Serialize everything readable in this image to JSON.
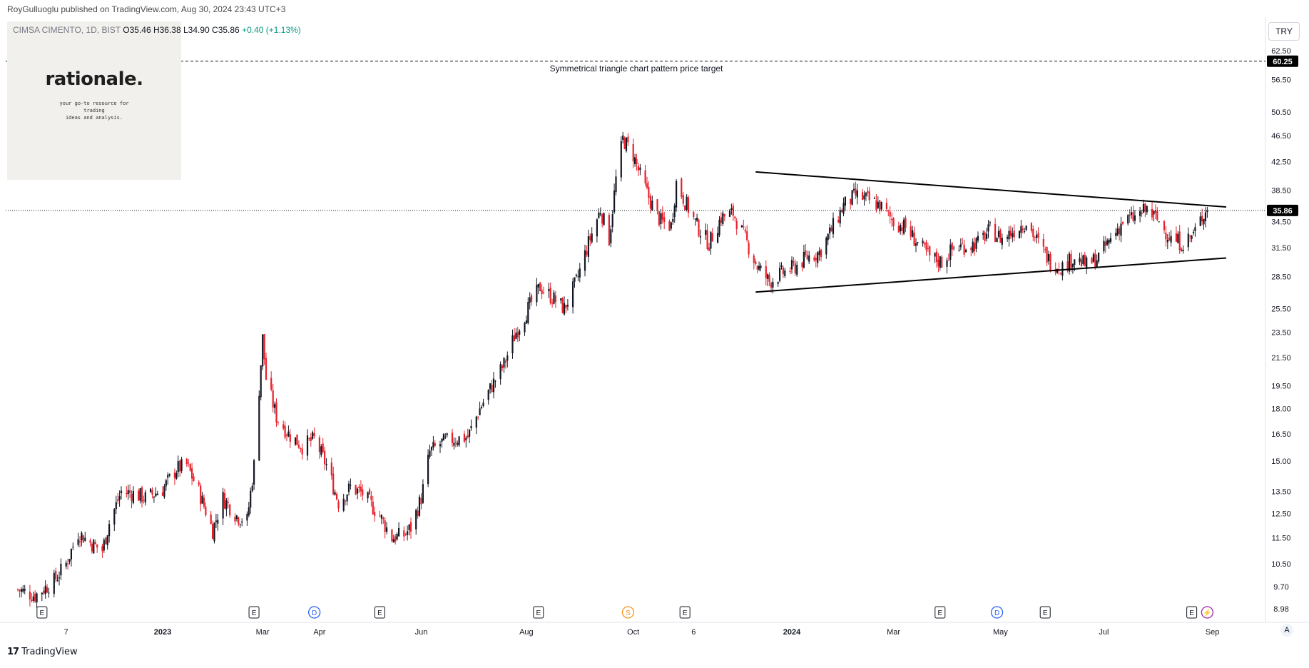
{
  "header": {
    "publisher": "RoyGulluoglu published on TradingView.com, Aug 30, 2024 23:43 UTC+3"
  },
  "symbol": {
    "name": "CIMSA CIMENTO, 1D, BIST",
    "ohlc": "O35.46 H36.38 L34.90 C35.86",
    "change": "+0.40 (+1.13%)"
  },
  "logo": {
    "title": "rationale.",
    "tagline_1": "your go-to resource for trading",
    "tagline_2": "ideas and analysis."
  },
  "toolbar": {
    "currency": "TRY",
    "auto_label": "A"
  },
  "footer": {
    "brand": "TradingView",
    "brand_mark": "17"
  },
  "colors": {
    "up": "#131722",
    "down": "#e8202b",
    "trendline": "#000000",
    "badge_bg": "#000000",
    "badge_text": "#ffffff",
    "event_blue": "#2962ff",
    "event_orange": "#f7931a",
    "event_purple": "#9c27b0"
  },
  "chart_data": {
    "type": "candlestick",
    "title": "",
    "y_scale": "log",
    "ylim": [
      8.7,
      66.0
    ],
    "y_ticks": [
      "62.50",
      "56.50",
      "50.50",
      "46.50",
      "42.50",
      "38.50",
      "34.50",
      "31.50",
      "28.50",
      "25.50",
      "23.50",
      "21.50",
      "19.50",
      "18.00",
      "16.50",
      "15.00",
      "13.50",
      "12.50",
      "11.50",
      "10.50",
      "9.70",
      "8.98"
    ],
    "x_ticks": [
      {
        "label": "7",
        "date": "2022-11-07"
      },
      {
        "label": "2023",
        "date": "2023-01-02"
      },
      {
        "label": "Mar",
        "date": "2023-03-01"
      },
      {
        "label": "Apr",
        "date": "2023-04-03"
      },
      {
        "label": "Jun",
        "date": "2023-06-01"
      },
      {
        "label": "Aug",
        "date": "2023-08-01"
      },
      {
        "label": "Oct",
        "date": "2023-10-02"
      },
      {
        "label": "6",
        "date": "2023-11-06"
      },
      {
        "label": "2024",
        "date": "2024-01-02"
      },
      {
        "label": "Mar",
        "date": "2024-03-01"
      },
      {
        "label": "May",
        "date": "2024-05-02"
      },
      {
        "label": "Jul",
        "date": "2024-07-01"
      },
      {
        "label": "Sep",
        "date": "2024-09-02"
      }
    ],
    "last_price": "35.86",
    "target_price": "60.25",
    "target_label": "Symmetrical triangle chart pattern price target",
    "trendlines": [
      {
        "name": "upper",
        "from": {
          "date": "2023-12-12",
          "price": 41.0
        },
        "to": {
          "date": "2024-09-10",
          "price": 36.3
        }
      },
      {
        "name": "lower",
        "from": {
          "date": "2023-12-12",
          "price": 27.0
        },
        "to": {
          "date": "2024-09-10",
          "price": 30.4
        }
      }
    ],
    "price_path": [
      {
        "date": "2022-10-10",
        "price": 9.6
      },
      {
        "date": "2022-10-20",
        "price": 9.4
      },
      {
        "date": "2022-10-31",
        "price": 9.9
      },
      {
        "date": "2022-11-07",
        "price": 10.5
      },
      {
        "date": "2022-11-14",
        "price": 11.7
      },
      {
        "date": "2022-11-21",
        "price": 11.3
      },
      {
        "date": "2022-11-28",
        "price": 11.0
      },
      {
        "date": "2022-12-02",
        "price": 12.1
      },
      {
        "date": "2022-12-09",
        "price": 13.5
      },
      {
        "date": "2022-12-16",
        "price": 13.4
      },
      {
        "date": "2022-12-23",
        "price": 13.2
      },
      {
        "date": "2023-01-02",
        "price": 13.6
      },
      {
        "date": "2023-01-10",
        "price": 14.6
      },
      {
        "date": "2023-01-16",
        "price": 14.8
      },
      {
        "date": "2023-01-23",
        "price": 13.5
      },
      {
        "date": "2023-01-31",
        "price": 11.8
      },
      {
        "date": "2023-02-06",
        "price": 13.2
      },
      {
        "date": "2023-02-14",
        "price": 12.4
      },
      {
        "date": "2023-02-20",
        "price": 12.2
      },
      {
        "date": "2023-02-24",
        "price": 14.8
      },
      {
        "date": "2023-03-01",
        "price": 23.0
      },
      {
        "date": "2023-03-03",
        "price": 20.0
      },
      {
        "date": "2023-03-09",
        "price": 17.5
      },
      {
        "date": "2023-03-16",
        "price": 16.5
      },
      {
        "date": "2023-03-24",
        "price": 15.8
      },
      {
        "date": "2023-03-31",
        "price": 16.2
      },
      {
        "date": "2023-04-07",
        "price": 14.8
      },
      {
        "date": "2023-04-14",
        "price": 13.0
      },
      {
        "date": "2023-04-21",
        "price": 13.7
      },
      {
        "date": "2023-04-28",
        "price": 13.4
      },
      {
        "date": "2023-05-08",
        "price": 12.4
      },
      {
        "date": "2023-05-15",
        "price": 11.5
      },
      {
        "date": "2023-05-22",
        "price": 11.6
      },
      {
        "date": "2023-05-26",
        "price": 11.9
      },
      {
        "date": "2023-06-01",
        "price": 13.2
      },
      {
        "date": "2023-06-06",
        "price": 15.5
      },
      {
        "date": "2023-06-13",
        "price": 16.0
      },
      {
        "date": "2023-06-20",
        "price": 16.2
      },
      {
        "date": "2023-06-28",
        "price": 16.3
      },
      {
        "date": "2023-07-05",
        "price": 18.0
      },
      {
        "date": "2023-07-12",
        "price": 19.5
      },
      {
        "date": "2023-07-19",
        "price": 21.0
      },
      {
        "date": "2023-07-26",
        "price": 23.5
      },
      {
        "date": "2023-08-02",
        "price": 25.5
      },
      {
        "date": "2023-08-09",
        "price": 27.5
      },
      {
        "date": "2023-08-16",
        "price": 26.5
      },
      {
        "date": "2023-08-23",
        "price": 25.5
      },
      {
        "date": "2023-08-30",
        "price": 28.0
      },
      {
        "date": "2023-09-06",
        "price": 32.0
      },
      {
        "date": "2023-09-13",
        "price": 36.0
      },
      {
        "date": "2023-09-18",
        "price": 32.5
      },
      {
        "date": "2023-09-22",
        "price": 40.0
      },
      {
        "date": "2023-09-26",
        "price": 46.0
      },
      {
        "date": "2023-10-02",
        "price": 43.5
      },
      {
        "date": "2023-10-06",
        "price": 40.5
      },
      {
        "date": "2023-10-12",
        "price": 37.0
      },
      {
        "date": "2023-10-18",
        "price": 34.5
      },
      {
        "date": "2023-10-24",
        "price": 34.0
      },
      {
        "date": "2023-10-27",
        "price": 39.5
      },
      {
        "date": "2023-11-01",
        "price": 37.0
      },
      {
        "date": "2023-11-08",
        "price": 34.0
      },
      {
        "date": "2023-11-15",
        "price": 32.0
      },
      {
        "date": "2023-11-22",
        "price": 35.0
      },
      {
        "date": "2023-11-29",
        "price": 35.5
      },
      {
        "date": "2023-12-06",
        "price": 32.5
      },
      {
        "date": "2023-12-13",
        "price": 29.5
      },
      {
        "date": "2023-12-20",
        "price": 28.0
      },
      {
        "date": "2023-12-27",
        "price": 28.8
      },
      {
        "date": "2024-01-04",
        "price": 29.5
      },
      {
        "date": "2024-01-11",
        "price": 30.5
      },
      {
        "date": "2024-01-18",
        "price": 31.0
      },
      {
        "date": "2024-01-25",
        "price": 33.5
      },
      {
        "date": "2024-02-01",
        "price": 36.5
      },
      {
        "date": "2024-02-08",
        "price": 37.8
      },
      {
        "date": "2024-02-15",
        "price": 37.2
      },
      {
        "date": "2024-02-22",
        "price": 36.5
      },
      {
        "date": "2024-03-01",
        "price": 34.5
      },
      {
        "date": "2024-03-08",
        "price": 33.8
      },
      {
        "date": "2024-03-15",
        "price": 32.0
      },
      {
        "date": "2024-03-22",
        "price": 30.5
      },
      {
        "date": "2024-03-29",
        "price": 30.0
      },
      {
        "date": "2024-04-05",
        "price": 31.5
      },
      {
        "date": "2024-04-19",
        "price": 32.0
      },
      {
        "date": "2024-04-26",
        "price": 33.5
      },
      {
        "date": "2024-05-03",
        "price": 32.5
      },
      {
        "date": "2024-05-10",
        "price": 33.5
      },
      {
        "date": "2024-05-17",
        "price": 34.5
      },
      {
        "date": "2024-05-24",
        "price": 32.0
      },
      {
        "date": "2024-05-31",
        "price": 30.0
      },
      {
        "date": "2024-06-07",
        "price": 29.5
      },
      {
        "date": "2024-06-14",
        "price": 30.5
      },
      {
        "date": "2024-06-21",
        "price": 29.6
      },
      {
        "date": "2024-06-28",
        "price": 30.5
      },
      {
        "date": "2024-07-05",
        "price": 32.5
      },
      {
        "date": "2024-07-12",
        "price": 34.5
      },
      {
        "date": "2024-07-19",
        "price": 35.0
      },
      {
        "date": "2024-07-26",
        "price": 36.0
      },
      {
        "date": "2024-08-02",
        "price": 34.5
      },
      {
        "date": "2024-08-09",
        "price": 32.5
      },
      {
        "date": "2024-08-16",
        "price": 32.0
      },
      {
        "date": "2024-08-22",
        "price": 33.0
      },
      {
        "date": "2024-08-28",
        "price": 35.5
      },
      {
        "date": "2024-08-30",
        "price": 35.86
      }
    ],
    "events": [
      {
        "type": "E",
        "date": "2022-10-24"
      },
      {
        "type": "E",
        "date": "2023-02-24"
      },
      {
        "type": "D",
        "date": "2023-03-31"
      },
      {
        "type": "E",
        "date": "2023-05-08"
      },
      {
        "type": "E",
        "date": "2023-08-08"
      },
      {
        "type": "S",
        "date": "2023-09-29"
      },
      {
        "type": "E",
        "date": "2023-11-01"
      },
      {
        "type": "E",
        "date": "2024-03-28"
      },
      {
        "type": "D",
        "date": "2024-04-30"
      },
      {
        "type": "E",
        "date": "2024-05-28"
      },
      {
        "type": "E",
        "date": "2024-08-21"
      },
      {
        "type": "⚡",
        "date": "2024-08-30"
      }
    ]
  }
}
